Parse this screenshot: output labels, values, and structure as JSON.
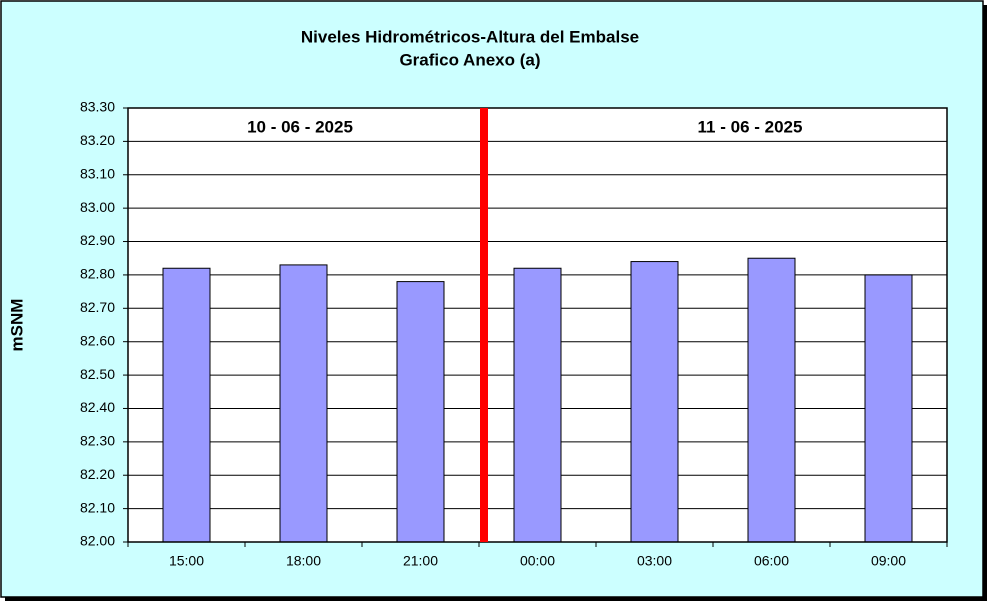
{
  "chart_data": {
    "type": "bar",
    "title": "Niveles Hidrométricos-Altura del Embalse",
    "subtitle": "Grafico Anexo (a)",
    "y_label": "mSNM",
    "annotations": [
      "10 - 06 - 2025",
      "11 - 06 - 2025"
    ],
    "categories": [
      "15:00",
      "18:00",
      "21:00",
      "00:00",
      "03:00",
      "06:00",
      "09:00"
    ],
    "values": [
      82.82,
      82.83,
      82.78,
      82.82,
      82.84,
      82.85,
      82.8
    ],
    "color": "#9999ff",
    "ylim": [
      82,
      83.3
    ],
    "yticks": [
      {
        "value": 82,
        "label": "82.00"
      },
      {
        "value": 82.1,
        "label": "82.10"
      },
      {
        "value": 82.2,
        "label": "82.20"
      },
      {
        "value": 82.3,
        "label": "82.30"
      },
      {
        "value": 82.4,
        "label": "82.40"
      },
      {
        "value": 82.5,
        "label": "82.50"
      },
      {
        "value": 82.6,
        "label": "82.60"
      },
      {
        "value": 82.7,
        "label": "82.70"
      },
      {
        "value": 82.8,
        "label": "82.80"
      },
      {
        "value": 82.9,
        "label": "82.90"
      },
      {
        "value": 83,
        "label": "83.00"
      },
      {
        "value": 83.1,
        "label": "83.10"
      },
      {
        "value": 83.2,
        "label": "83.20"
      },
      {
        "value": 83.3,
        "label": "83.30"
      }
    ],
    "grid": true
  }
}
